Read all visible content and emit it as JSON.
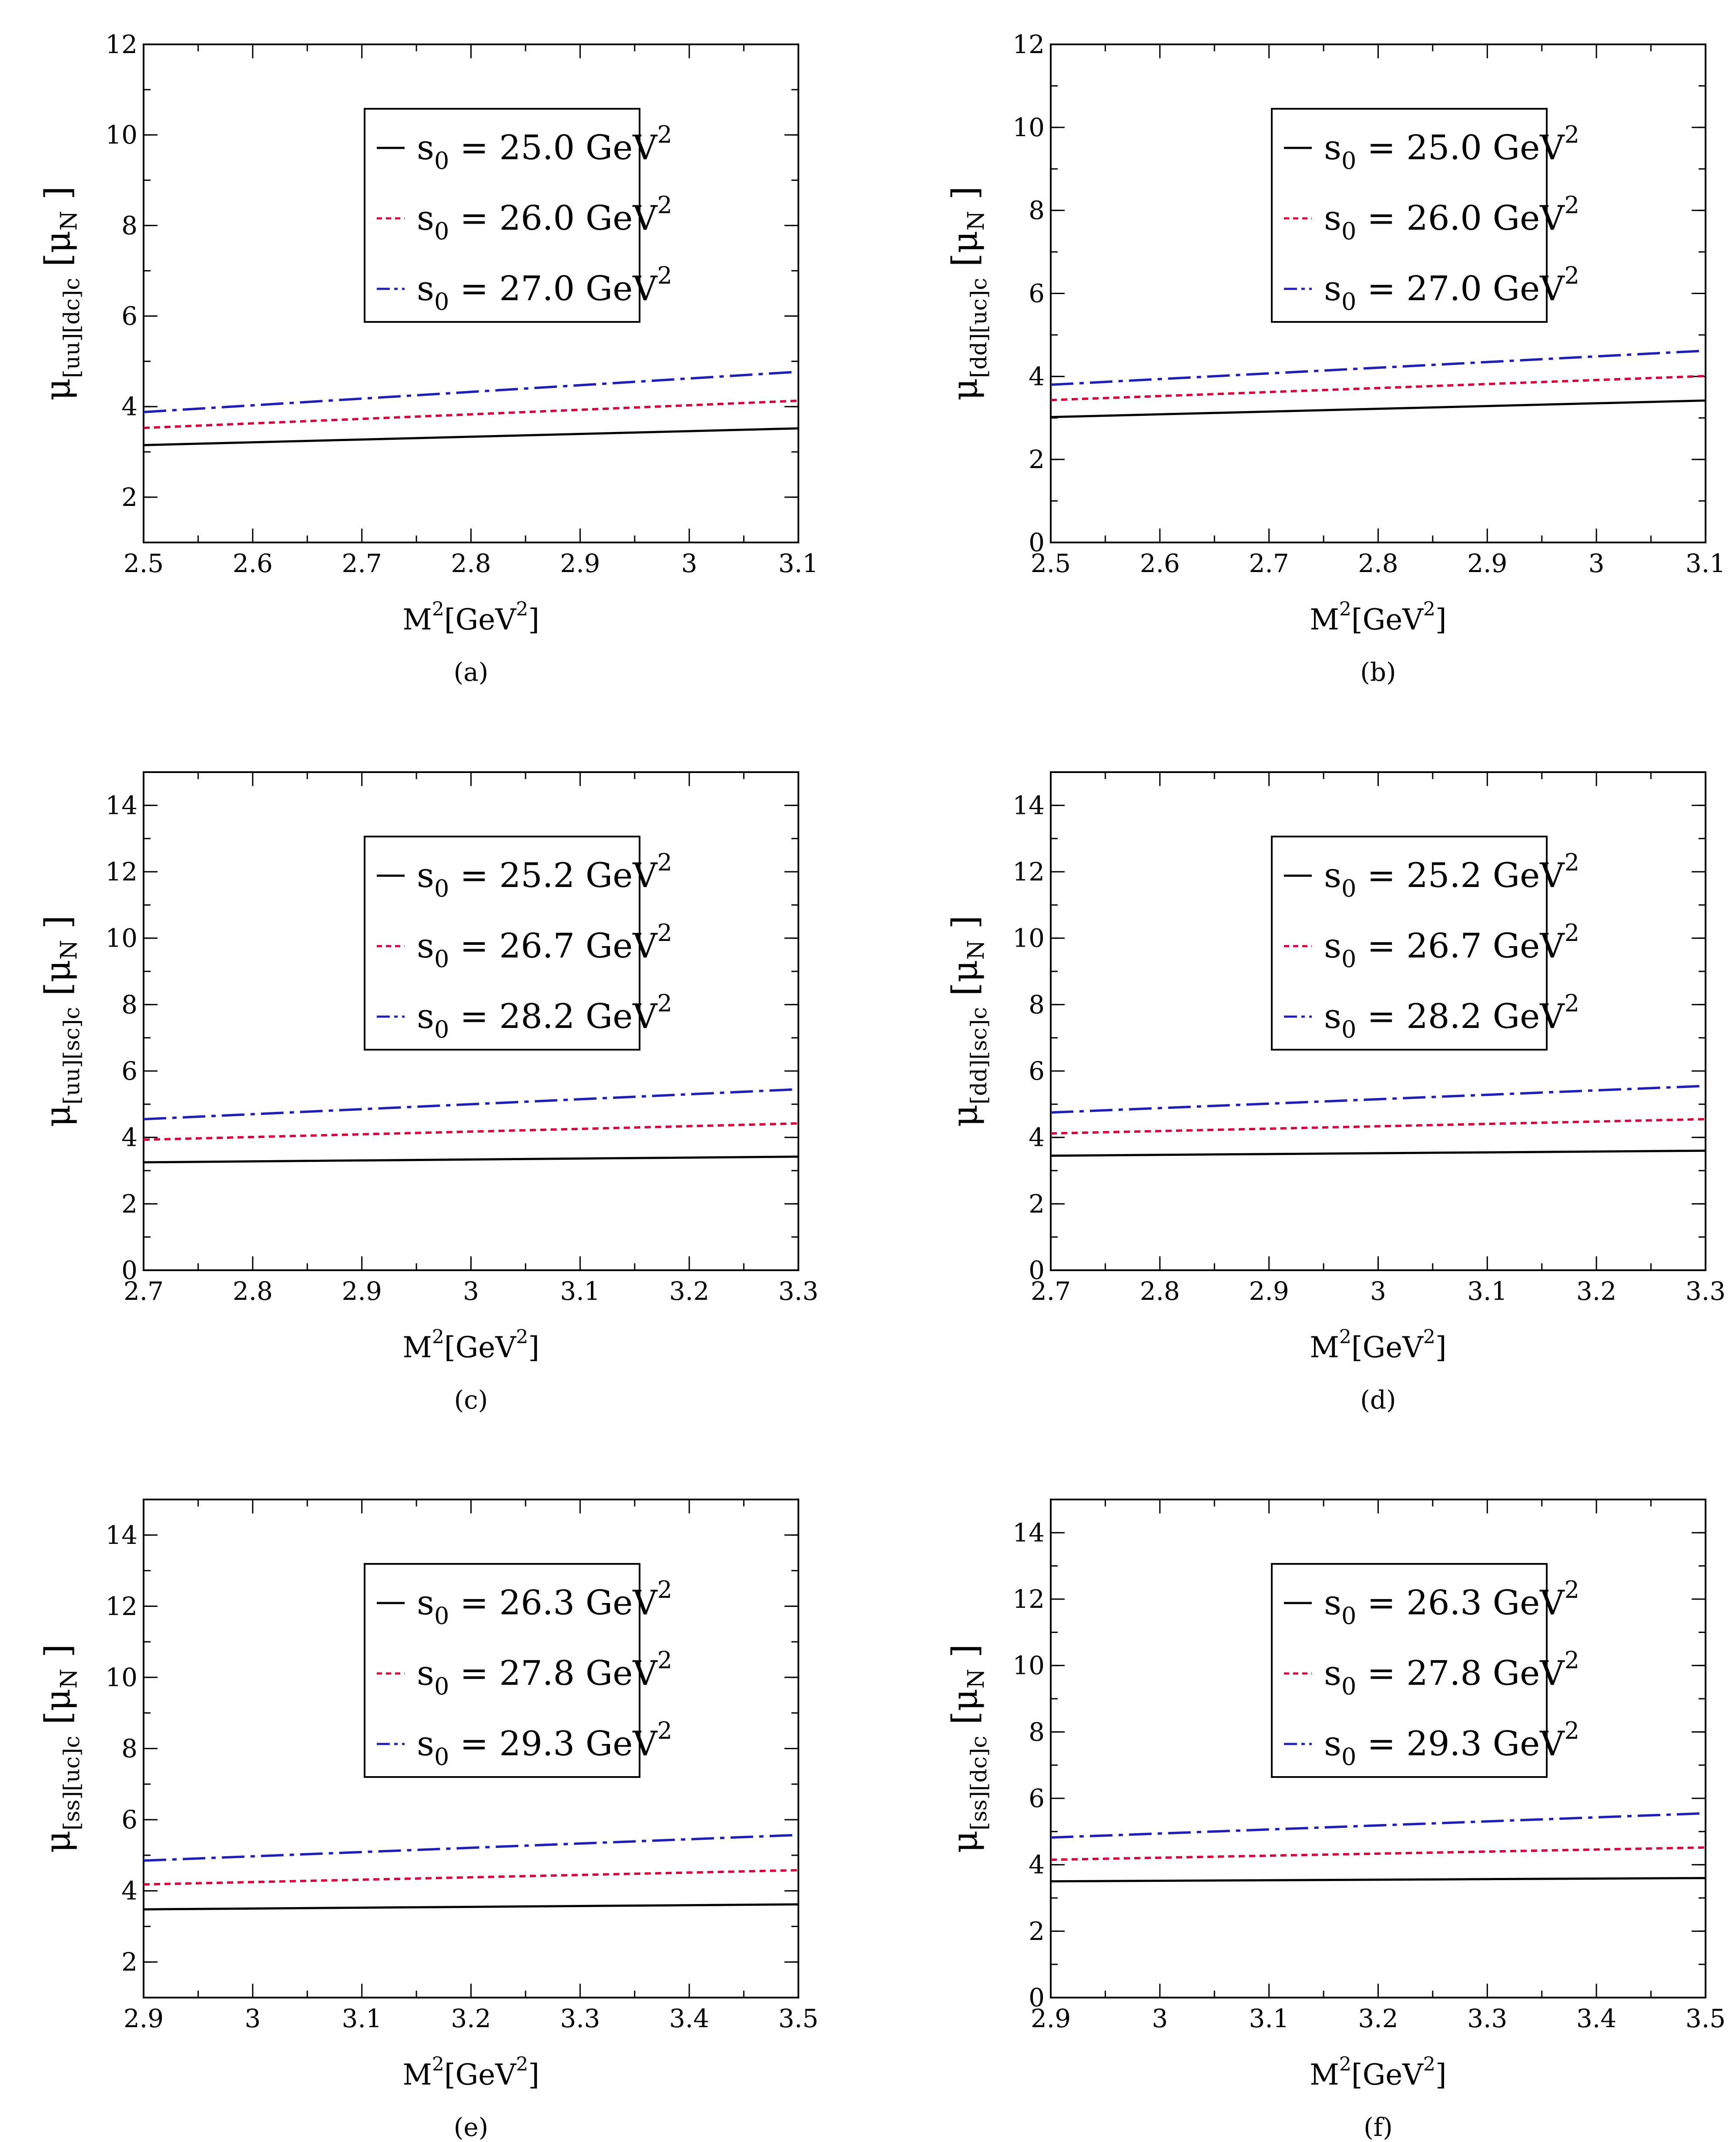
{
  "chart_data": [
    {
      "panel": "(a)",
      "type": "line",
      "ylabel_sub": "[uu][dc]c",
      "ylabel_unit": "N",
      "xlabel": "M",
      "xlabel_unit": "GeV",
      "xlim": [
        2.5,
        3.1
      ],
      "ylim": [
        1,
        12
      ],
      "xticks": [
        "2.5",
        "2.6",
        "2.7",
        "2.8",
        "2.9",
        "3",
        "3.1"
      ],
      "yticks": [
        "2",
        "4",
        "6",
        "8",
        "10",
        "12"
      ],
      "series": [
        {
          "name": "s0 = 25.0 GeV2",
          "s0": "25.0",
          "style": "solid",
          "color": "#000000",
          "x": [
            2.5,
            3.1
          ],
          "y": [
            3.15,
            3.52
          ]
        },
        {
          "name": "s0 = 26.0 GeV2",
          "s0": "26.0",
          "style": "dotted",
          "color": "#d4003c",
          "x": [
            2.5,
            3.1
          ],
          "y": [
            3.53,
            4.13
          ]
        },
        {
          "name": "s0 = 27.0 GeV2",
          "s0": "27.0",
          "style": "dashdot",
          "color": "#1f1fb4",
          "x": [
            2.5,
            3.1
          ],
          "y": [
            3.88,
            4.77
          ]
        }
      ]
    },
    {
      "panel": "(b)",
      "type": "line",
      "ylabel_sub": "[dd][uc]c",
      "ylabel_unit": "N",
      "xlabel": "M",
      "xlabel_unit": "GeV",
      "xlim": [
        2.5,
        3.1
      ],
      "ylim": [
        0,
        12
      ],
      "xticks": [
        "2.5",
        "2.6",
        "2.7",
        "2.8",
        "2.9",
        "3",
        "3.1"
      ],
      "yticks": [
        "0",
        "2",
        "4",
        "6",
        "8",
        "10",
        "12"
      ],
      "series": [
        {
          "name": "s0 = 25.0 GeV2",
          "s0": "25.0",
          "style": "solid",
          "color": "#000000",
          "x": [
            2.5,
            3.1
          ],
          "y": [
            3.02,
            3.42
          ]
        },
        {
          "name": "s0 = 26.0 GeV2",
          "s0": "26.0",
          "style": "dotted",
          "color": "#d4003c",
          "x": [
            2.5,
            3.1
          ],
          "y": [
            3.43,
            4.01
          ]
        },
        {
          "name": "s0 = 27.0 GeV2",
          "s0": "27.0",
          "style": "dashdot",
          "color": "#1f1fb4",
          "x": [
            2.5,
            3.1
          ],
          "y": [
            3.8,
            4.62
          ]
        }
      ]
    },
    {
      "panel": "(c)",
      "type": "line",
      "ylabel_sub": "[uu][sc]c",
      "ylabel_unit": "N",
      "xlabel": "M",
      "xlabel_unit": "GeV",
      "xlim": [
        2.7,
        3.3
      ],
      "ylim": [
        0,
        15
      ],
      "xticks": [
        "2.7",
        "2.8",
        "2.9",
        "3",
        "3.1",
        "3.2",
        "3.3"
      ],
      "yticks": [
        "0",
        "2",
        "4",
        "6",
        "8",
        "10",
        "12",
        "14"
      ],
      "series": [
        {
          "name": "s0 = 25.2 GeV2",
          "s0": "25.2",
          "style": "solid",
          "color": "#000000",
          "x": [
            2.7,
            3.3
          ],
          "y": [
            3.25,
            3.42
          ]
        },
        {
          "name": "s0 = 26.7 GeV2",
          "s0": "26.7",
          "style": "dotted",
          "color": "#d4003c",
          "x": [
            2.7,
            3.3
          ],
          "y": [
            3.93,
            4.42
          ]
        },
        {
          "name": "s0 = 28.2 GeV2",
          "s0": "28.2",
          "style": "dashdot",
          "color": "#1f1fb4",
          "x": [
            2.7,
            3.3
          ],
          "y": [
            4.55,
            5.45
          ]
        }
      ]
    },
    {
      "panel": "(d)",
      "type": "line",
      "ylabel_sub": "[dd][sc]c",
      "ylabel_unit": "N",
      "xlabel": "M",
      "xlabel_unit": "GeV",
      "xlim": [
        2.7,
        3.3
      ],
      "ylim": [
        0,
        15
      ],
      "xticks": [
        "2.7",
        "2.8",
        "2.9",
        "3",
        "3.1",
        "3.2",
        "3.3"
      ],
      "yticks": [
        "0",
        "2",
        "4",
        "6",
        "8",
        "10",
        "12",
        "14"
      ],
      "series": [
        {
          "name": "s0 = 25.2 GeV2",
          "s0": "25.2",
          "style": "solid",
          "color": "#000000",
          "x": [
            2.7,
            3.3
          ],
          "y": [
            3.45,
            3.6
          ]
        },
        {
          "name": "s0 = 26.7 GeV2",
          "s0": "26.7",
          "style": "dotted",
          "color": "#d4003c",
          "x": [
            2.7,
            3.3
          ],
          "y": [
            4.12,
            4.55
          ]
        },
        {
          "name": "s0 = 28.2 GeV2",
          "s0": "28.2",
          "style": "dashdot",
          "color": "#1f1fb4",
          "x": [
            2.7,
            3.3
          ],
          "y": [
            4.75,
            5.55
          ]
        }
      ]
    },
    {
      "panel": "(e)",
      "type": "line",
      "ylabel_sub": "[ss][uc]c",
      "ylabel_unit": "N",
      "xlabel": "M",
      "xlabel_unit": "GeV",
      "xlim": [
        2.9,
        3.5
      ],
      "ylim": [
        1,
        15
      ],
      "xticks": [
        "2.9",
        "3",
        "3.1",
        "3.2",
        "3.3",
        "3.4",
        "3.5"
      ],
      "yticks": [
        "2",
        "4",
        "6",
        "8",
        "10",
        "12",
        "14"
      ],
      "series": [
        {
          "name": "s0 = 26.3 GeV2",
          "s0": "26.3",
          "style": "solid",
          "color": "#000000",
          "x": [
            2.9,
            3.5
          ],
          "y": [
            3.48,
            3.62
          ]
        },
        {
          "name": "s0 = 27.8 GeV2",
          "s0": "27.8",
          "style": "dotted",
          "color": "#d4003c",
          "x": [
            2.9,
            3.5
          ],
          "y": [
            4.18,
            4.58
          ]
        },
        {
          "name": "s0 = 29.3 GeV2",
          "s0": "29.3",
          "style": "dashdot",
          "color": "#1f1fb4",
          "x": [
            2.9,
            3.5
          ],
          "y": [
            4.85,
            5.57
          ]
        }
      ]
    },
    {
      "panel": "(f)",
      "type": "line",
      "ylabel_sub": "[ss][dc]c",
      "ylabel_unit": "N",
      "xlabel": "M",
      "xlabel_unit": "GeV",
      "xlim": [
        2.9,
        3.5
      ],
      "ylim": [
        0,
        15
      ],
      "xticks": [
        "2.9",
        "3",
        "3.1",
        "3.2",
        "3.3",
        "3.4",
        "3.5"
      ],
      "yticks": [
        "0",
        "2",
        "4",
        "6",
        "8",
        "10",
        "12",
        "14"
      ],
      "series": [
        {
          "name": "s0 = 26.3 GeV2",
          "s0": "26.3",
          "style": "solid",
          "color": "#000000",
          "x": [
            2.9,
            3.5
          ],
          "y": [
            3.5,
            3.6
          ]
        },
        {
          "name": "s0 = 27.8 GeV2",
          "s0": "27.8",
          "style": "dotted",
          "color": "#d4003c",
          "x": [
            2.9,
            3.5
          ],
          "y": [
            4.15,
            4.52
          ]
        },
        {
          "name": "s0 = 29.3 GeV2",
          "s0": "29.3",
          "style": "dashdot",
          "color": "#1f1fb4",
          "x": [
            2.9,
            3.5
          ],
          "y": [
            4.82,
            5.55
          ]
        }
      ]
    }
  ]
}
